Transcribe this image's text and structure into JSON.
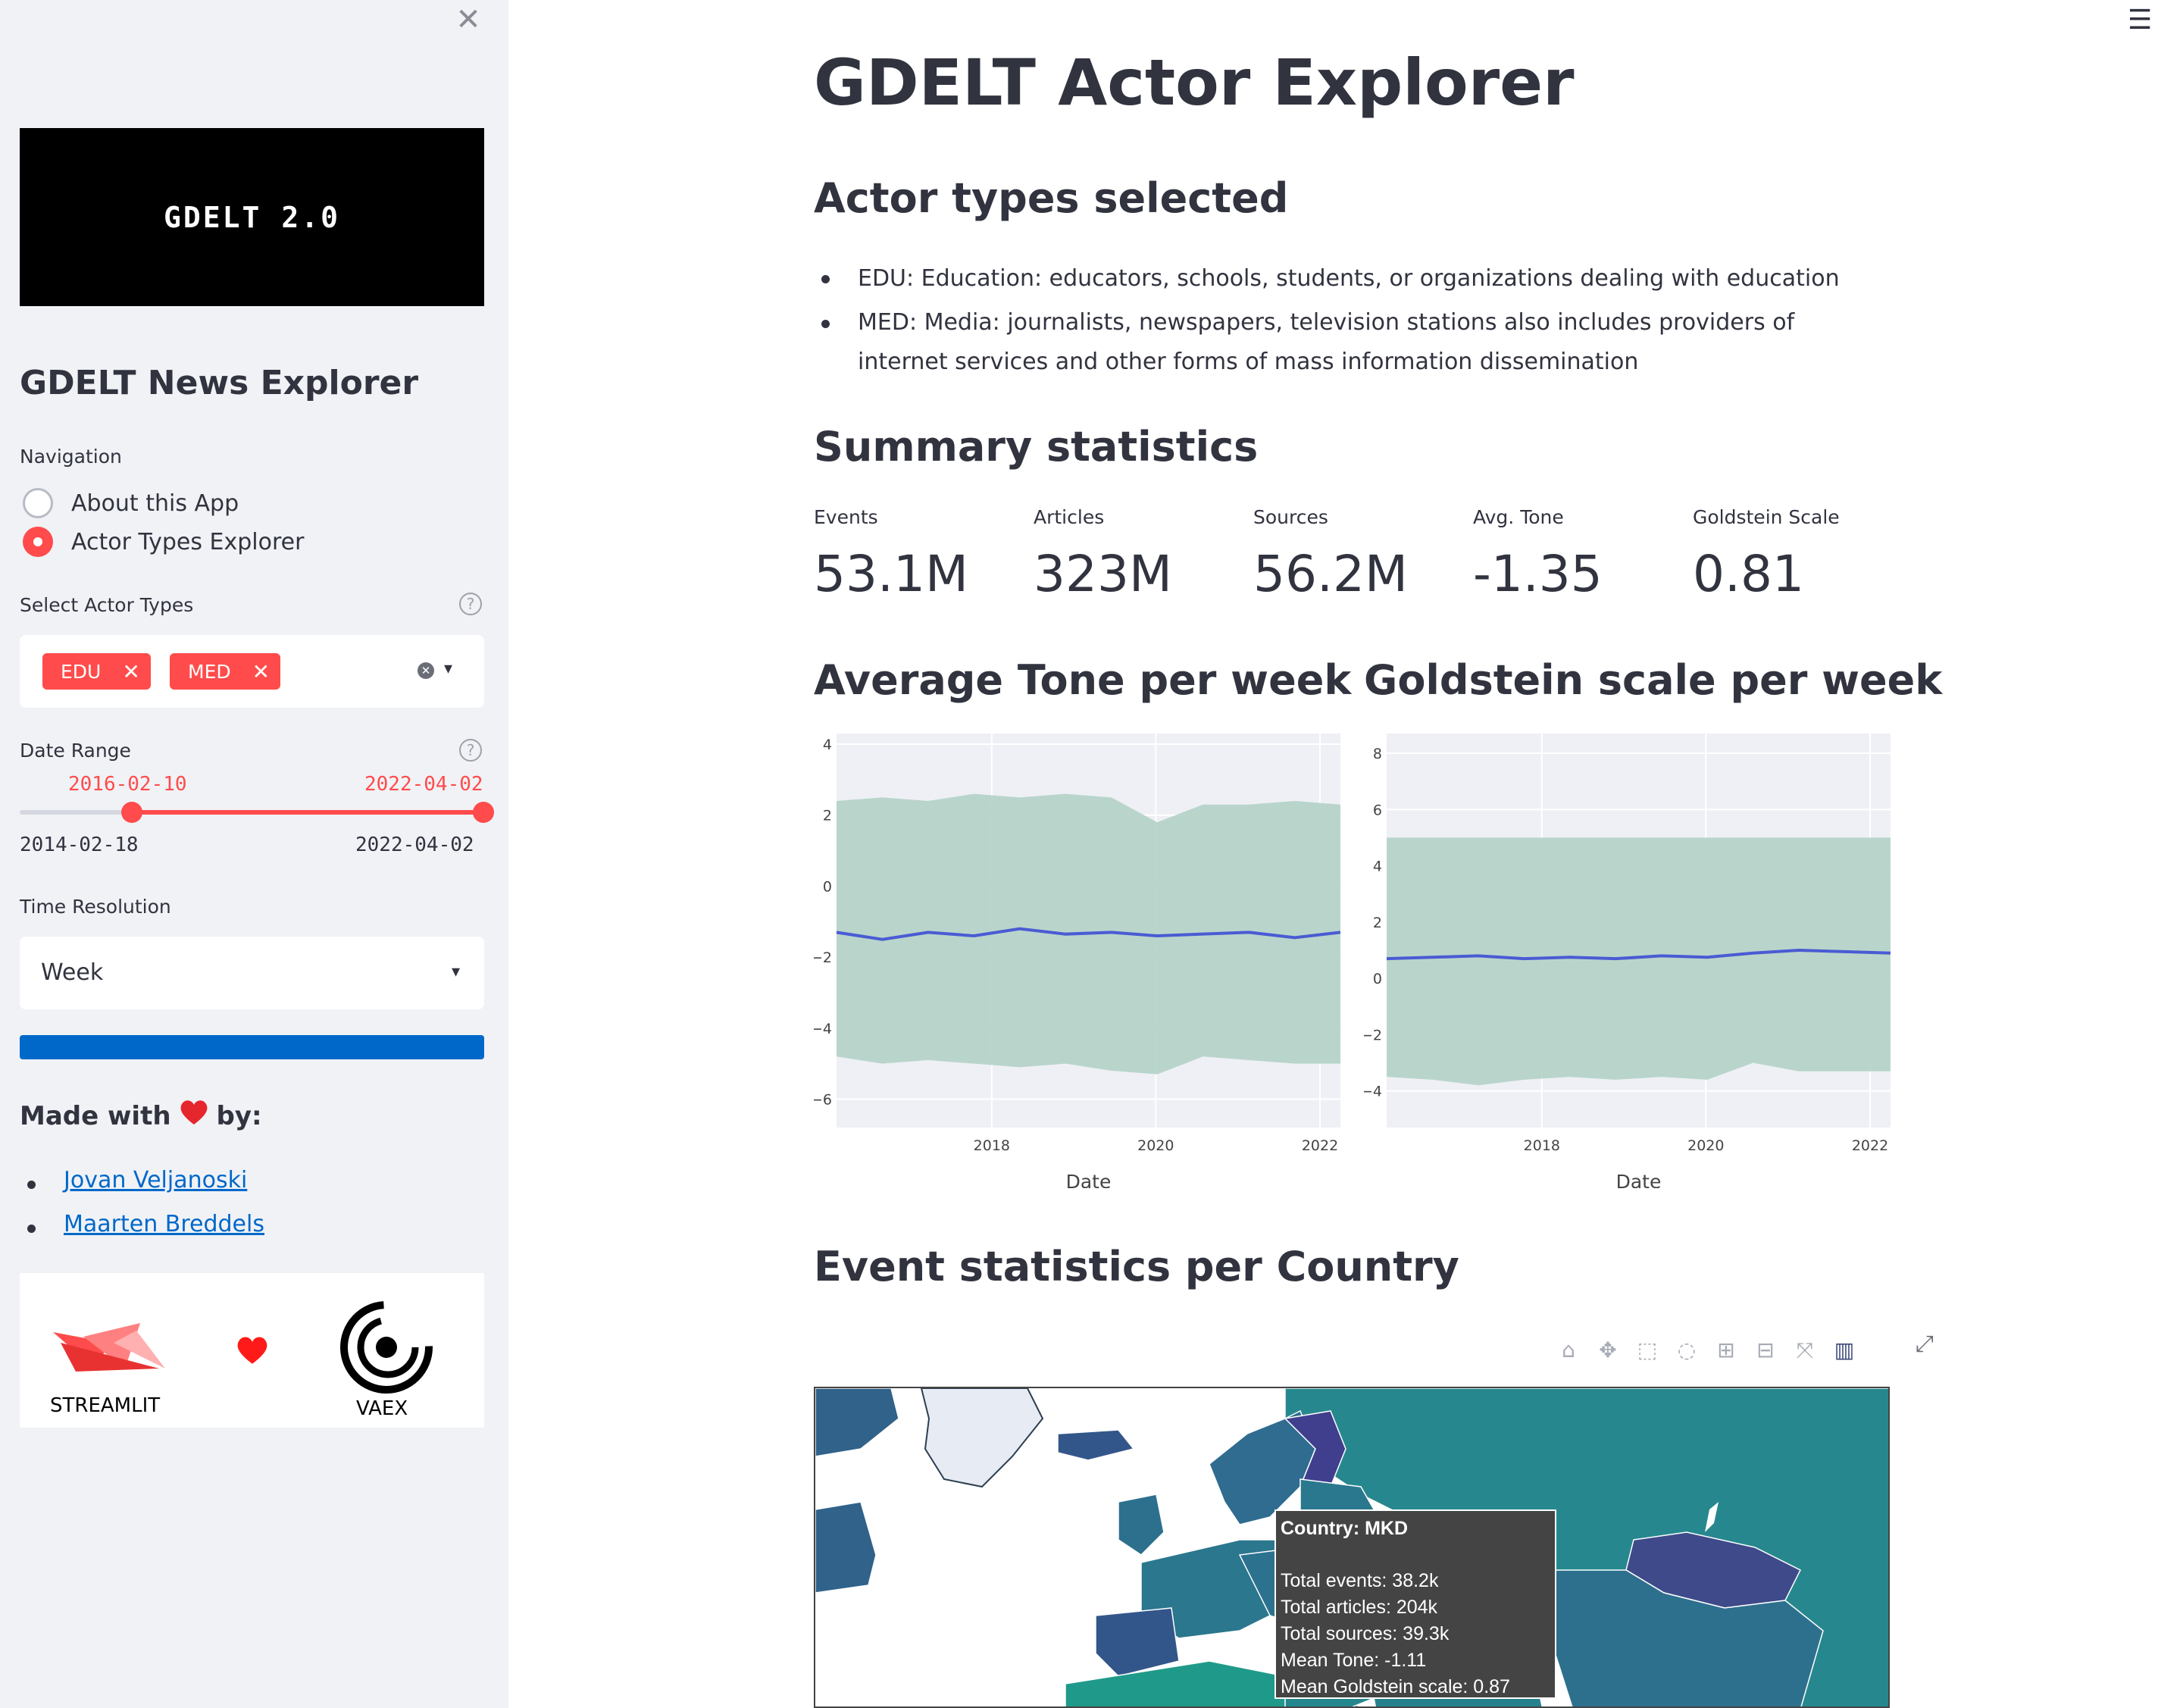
{
  "sidebar": {
    "close_icon": "x-icon",
    "logo_text": "GDELT 2.0",
    "title": "GDELT News Explorer",
    "navigation": {
      "label": "Navigation",
      "options": [
        "About this App",
        "Actor Types Explorer"
      ],
      "selected": "Actor Types Explorer"
    },
    "actor_types": {
      "label": "Select Actor Types",
      "chips": [
        "EDU",
        "MED"
      ]
    },
    "date_range": {
      "label": "Date Range",
      "start": "2016-02-10",
      "end": "2022-04-02",
      "min": "2014-02-18",
      "max": "2022-04-02"
    },
    "time_resolution": {
      "label": "Time Resolution",
      "value": "Week"
    },
    "progress": 1.0,
    "made_with": {
      "prefix": "Made with",
      "suffix": "by:",
      "authors": [
        "Jovan Veljanoski",
        "Maarten Breddels"
      ]
    },
    "logos": {
      "left": "STREAMLIT",
      "right": "VAEX"
    }
  },
  "main": {
    "title": "GDELT Actor Explorer",
    "actor_section": {
      "heading": "Actor types selected",
      "items": [
        "EDU: Education: educators, schools, students, or organizations dealing with education",
        "MED: Media: journalists, newspapers, television stations also includes providers of internet services and other forms of mass information dissemination"
      ]
    },
    "summary": {
      "heading": "Summary statistics",
      "metrics": [
        {
          "label": "Events",
          "value": "53.1M"
        },
        {
          "label": "Articles",
          "value": "323M"
        },
        {
          "label": "Sources",
          "value": "56.2M"
        },
        {
          "label": "Avg. Tone",
          "value": "-1.35"
        },
        {
          "label": "Goldstein Scale",
          "value": "0.81"
        }
      ]
    },
    "country_section": {
      "heading": "Event statistics per Country"
    },
    "tooltip": {
      "title": "Country: MKD",
      "lines": [
        "Total events: 38.2k",
        "Total articles: 204k",
        "Total sources: 39.3k",
        "Mean Tone: -1.11",
        "Mean Goldstein scale: 0.87"
      ]
    }
  },
  "chart_data": [
    {
      "type": "line",
      "title": "Average Tone per week",
      "xlabel": "Date",
      "ylabel": "",
      "x_ticks": [
        "2018",
        "2020",
        "2022"
      ],
      "y_ticks": [
        4,
        2,
        0,
        -2,
        -4,
        -6
      ],
      "x_range": [
        "2016-02-10",
        "2022-04-02"
      ],
      "ylim": [
        -6.8,
        4.3
      ],
      "grid": true,
      "series": [
        {
          "role": "mean",
          "color": "#4a5bd4",
          "values": [
            -1.3,
            -1.5,
            -1.3,
            -1.4,
            -1.2,
            -1.35,
            -1.3,
            -1.4,
            -1.35,
            -1.3,
            -1.45,
            -1.3
          ]
        },
        {
          "role": "band-upper",
          "color": "#b3d1c7",
          "values": [
            2.4,
            2.5,
            2.4,
            2.6,
            2.5,
            2.6,
            2.5,
            1.8,
            2.3,
            2.3,
            2.4,
            2.3
          ]
        },
        {
          "role": "band-lower",
          "color": "#b3d1c7",
          "values": [
            -4.8,
            -5.0,
            -4.9,
            -5.0,
            -5.1,
            -5.0,
            -5.2,
            -5.3,
            -4.8,
            -4.9,
            -5.0,
            -5.0
          ]
        }
      ]
    },
    {
      "type": "line",
      "title": "Goldstein scale per week",
      "xlabel": "Date",
      "ylabel": "",
      "x_ticks": [
        "2018",
        "2020",
        "2022"
      ],
      "y_ticks": [
        8,
        6,
        4,
        2,
        0,
        -2,
        -4
      ],
      "x_range": [
        "2016-02-10",
        "2022-04-02"
      ],
      "ylim": [
        -5.3,
        8.7
      ],
      "grid": true,
      "series": [
        {
          "role": "mean",
          "color": "#4a5bd4",
          "values": [
            0.7,
            0.75,
            0.8,
            0.7,
            0.75,
            0.7,
            0.8,
            0.75,
            0.9,
            1.0,
            0.95,
            0.9
          ]
        },
        {
          "role": "band-upper",
          "color": "#b3d1c7",
          "values": [
            5.0,
            5.0,
            5.0,
            5.0,
            5.0,
            5.0,
            5.0,
            5.0,
            5.0,
            5.0,
            5.0,
            5.0
          ]
        },
        {
          "role": "band-lower",
          "color": "#b3d1c7",
          "values": [
            -3.5,
            -3.6,
            -3.8,
            -3.6,
            -3.5,
            -3.6,
            -3.5,
            -3.6,
            -3.0,
            -3.3,
            -3.3,
            -3.3
          ]
        }
      ]
    }
  ]
}
